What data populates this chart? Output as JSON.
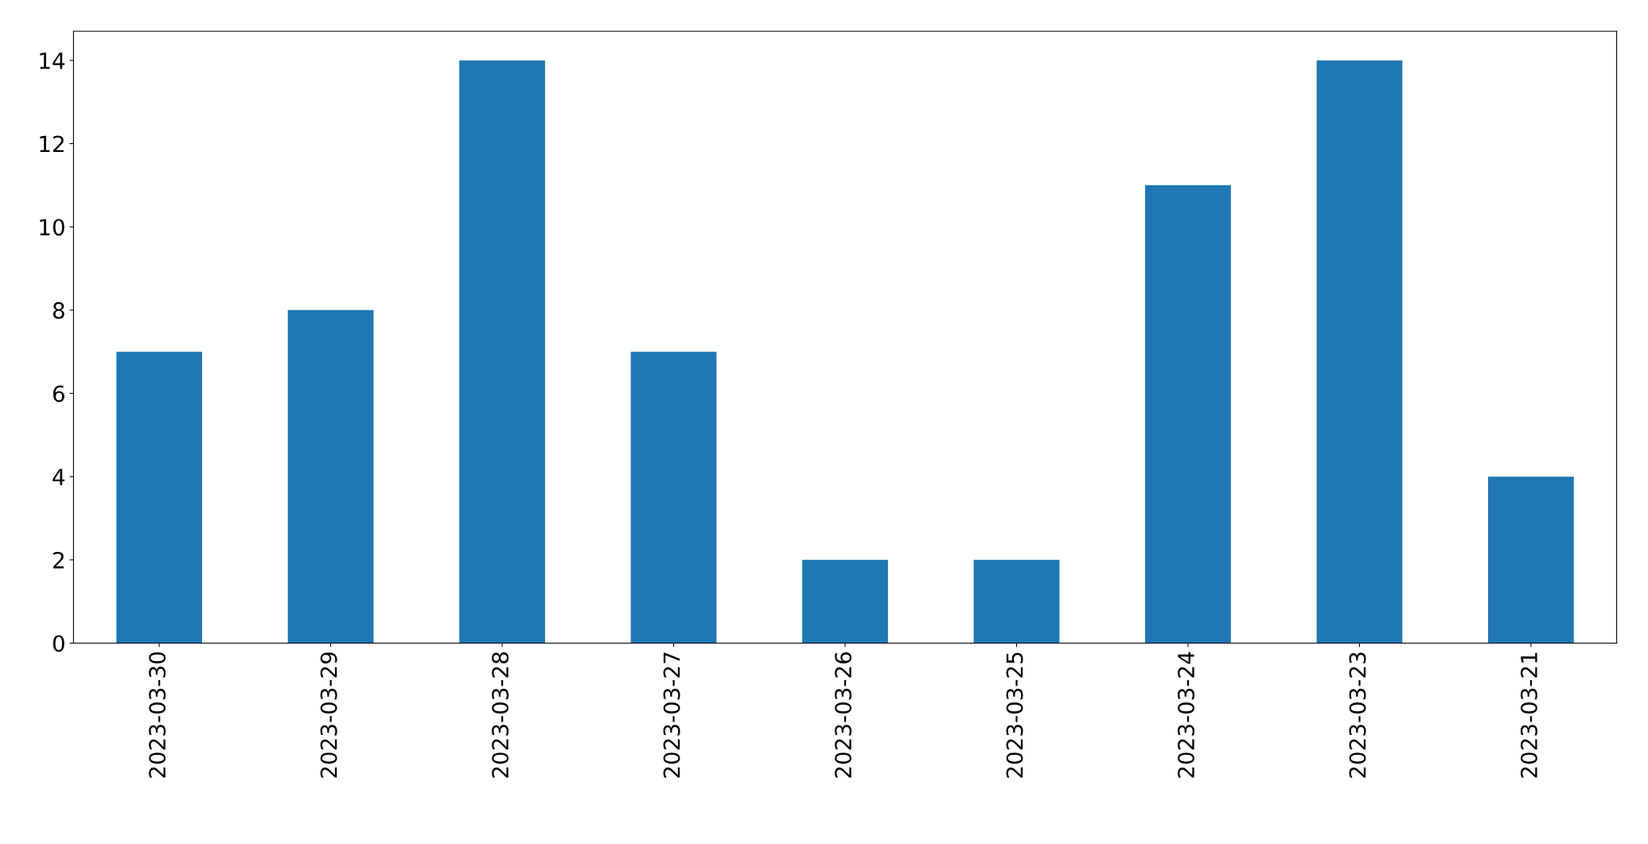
{
  "chart_data": {
    "type": "bar",
    "categories": [
      "2023-03-30",
      "2023-03-29",
      "2023-03-28",
      "2023-03-27",
      "2023-03-26",
      "2023-03-25",
      "2023-03-24",
      "2023-03-23",
      "2023-03-21"
    ],
    "values": [
      7,
      8,
      14,
      7,
      2,
      2,
      11,
      14,
      4
    ],
    "color": "#1f77b4",
    "ylim": [
      0,
      14.7
    ],
    "yticks": [
      0,
      2,
      4,
      6,
      8,
      10,
      12,
      14
    ],
    "grid": false,
    "legend": false
  }
}
